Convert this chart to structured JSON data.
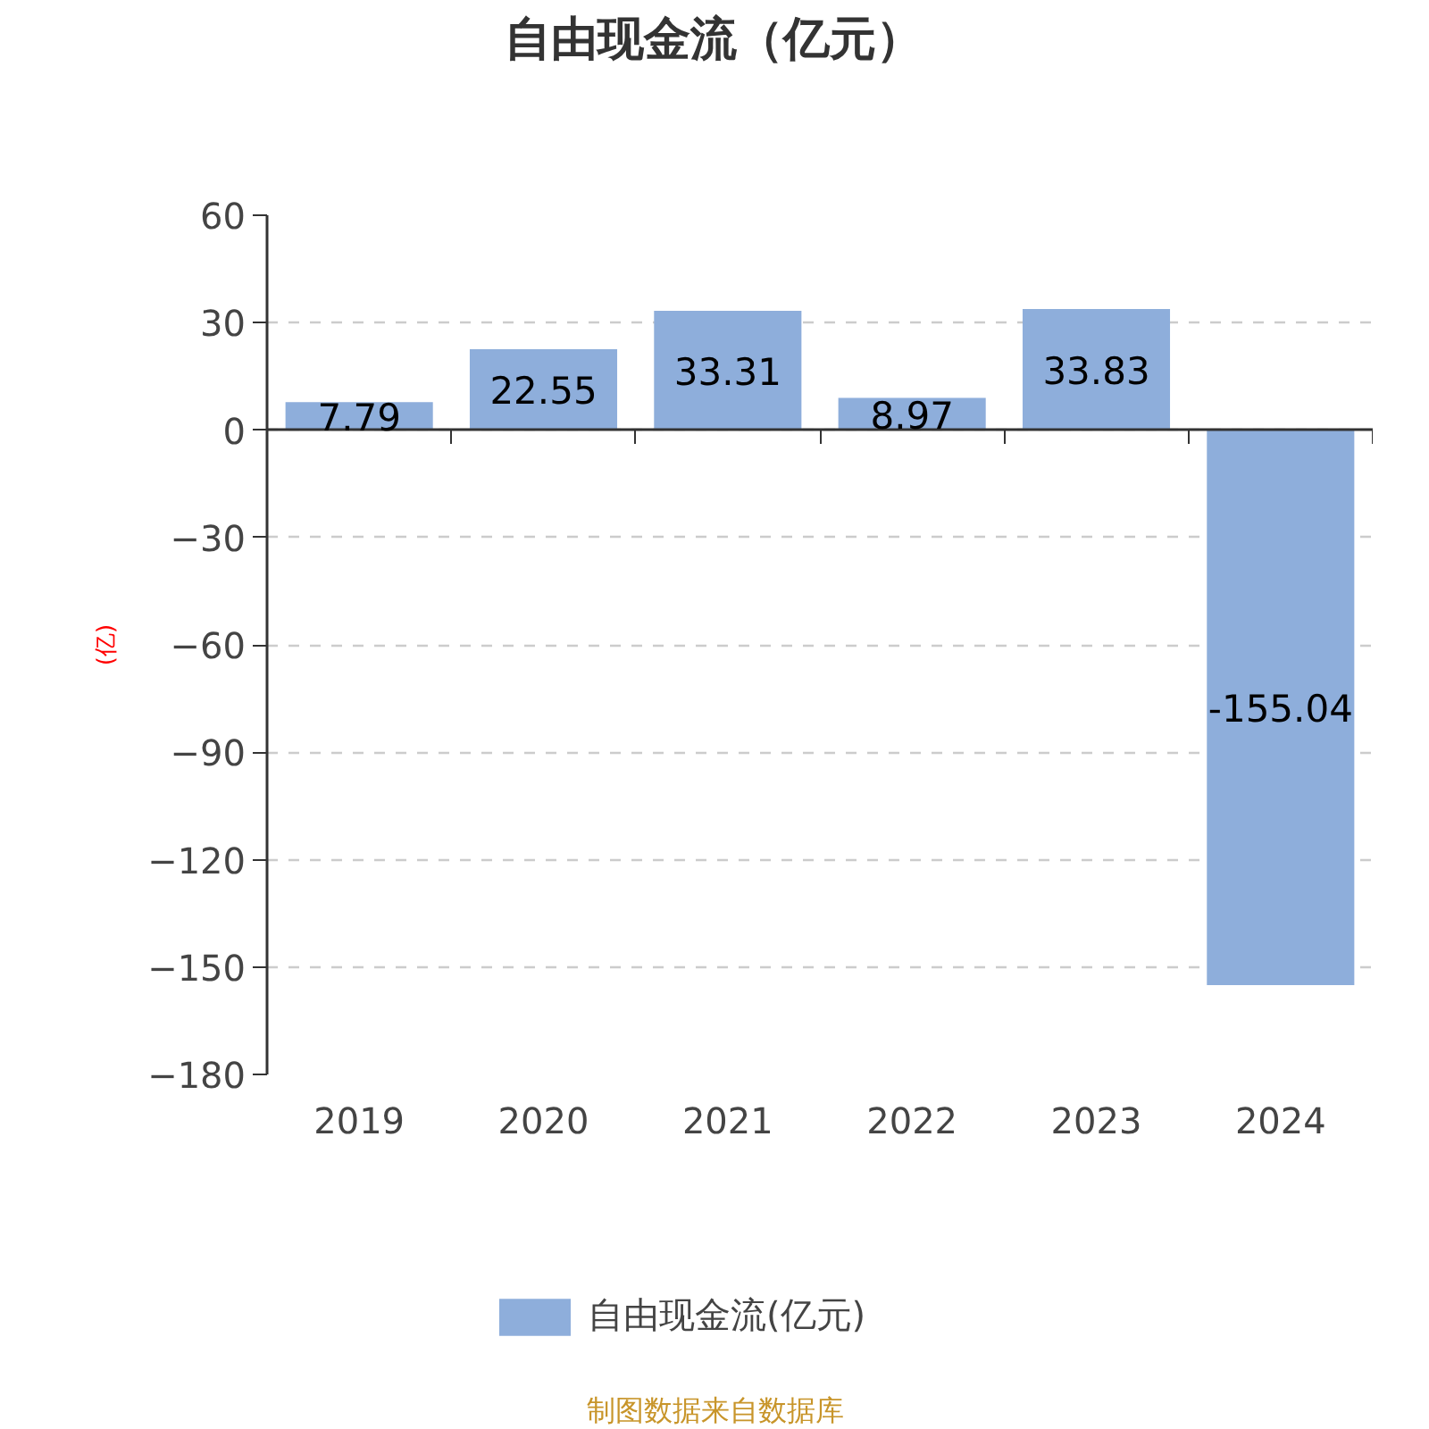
{
  "chart_data": {
    "type": "bar",
    "title": "自由现金流（亿元）",
    "ylabel": "(亿)",
    "categories": [
      "2019",
      "2020",
      "2021",
      "2022",
      "2023",
      "2024"
    ],
    "series": [
      {
        "name": "自由现金流(亿元)",
        "color": "#8eaedb",
        "values": [
          7.79,
          22.55,
          33.31,
          8.97,
          33.83,
          -155.04
        ]
      }
    ],
    "ylim": [
      -180,
      60
    ],
    "yticks": [
      -180,
      -150,
      -120,
      -90,
      -60,
      -30,
      0,
      30,
      60
    ],
    "grid": "y",
    "legend": "bottom",
    "data_labels": true,
    "annotations": [
      "制图数据来自数据库"
    ]
  }
}
